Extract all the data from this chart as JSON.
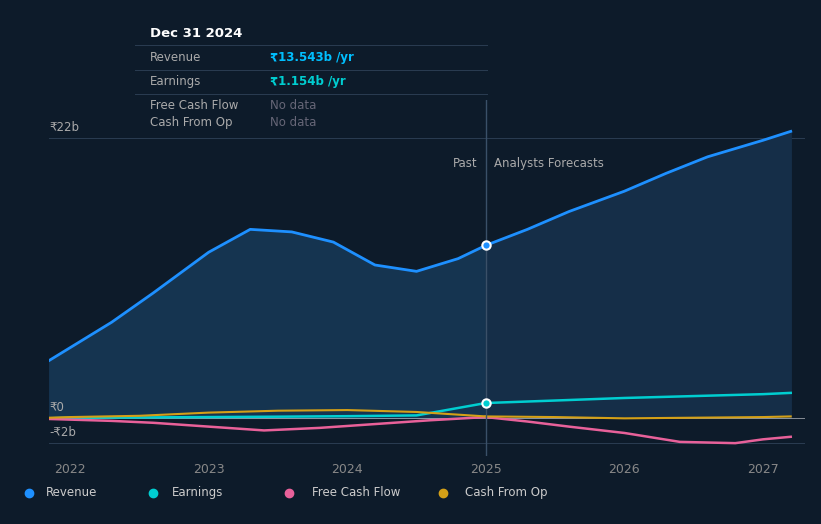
{
  "background_color": "#0d1b2a",
  "plot_bg_color": "#0d1b2a",
  "ylabel_top": "₹22b",
  "ylabel_zero": "₹0",
  "ylabel_neg": "-₹2b",
  "x_ticks": [
    2022,
    2023,
    2024,
    2025,
    2026,
    2027
  ],
  "divider_x": 2025,
  "past_label": "Past",
  "forecast_label": "Analysts Forecasts",
  "tooltip_title": "Dec 31 2024",
  "tooltip_revenue_label": "Revenue",
  "tooltip_revenue_val": "₹13.543b /yr",
  "tooltip_earnings_label": "Earnings",
  "tooltip_earnings_val": "₹1.154b /yr",
  "tooltip_fcf_label": "Free Cash Flow",
  "tooltip_fcf_val": "No data",
  "tooltip_cfop_label": "Cash From Op",
  "tooltip_cfop_val": "No data",
  "revenue_color": "#1e90ff",
  "earnings_color": "#00ced1",
  "fcf_color": "#e8619a",
  "cashfromop_color": "#d4a017",
  "revenue_fill_past": "#153450",
  "revenue_fill_future": "#152e48",
  "revenue_past_x": [
    2021.85,
    2022.0,
    2022.3,
    2022.6,
    2023.0,
    2023.3,
    2023.6,
    2023.9,
    2024.2,
    2024.5,
    2024.8,
    2025.0
  ],
  "revenue_past_y": [
    4.5,
    5.5,
    7.5,
    9.8,
    13.0,
    14.8,
    14.6,
    13.8,
    12.0,
    11.5,
    12.5,
    13.543
  ],
  "revenue_future_x": [
    2025.0,
    2025.3,
    2025.6,
    2026.0,
    2026.3,
    2026.6,
    2027.0,
    2027.2
  ],
  "revenue_future_y": [
    13.543,
    14.8,
    16.2,
    17.8,
    19.2,
    20.5,
    21.8,
    22.5
  ],
  "earnings_past_x": [
    2021.85,
    2022.0,
    2022.5,
    2023.0,
    2023.5,
    2024.0,
    2024.5,
    2025.0
  ],
  "earnings_past_y": [
    -0.05,
    0.0,
    0.02,
    0.05,
    0.08,
    0.12,
    0.18,
    1.154
  ],
  "earnings_future_x": [
    2025.0,
    2025.5,
    2026.0,
    2026.5,
    2027.0,
    2027.2
  ],
  "earnings_future_y": [
    1.154,
    1.35,
    1.55,
    1.7,
    1.85,
    1.95
  ],
  "fcf_past_x": [
    2021.85,
    2022.0,
    2022.3,
    2022.6,
    2023.0,
    2023.4,
    2023.8,
    2024.2,
    2024.6,
    2025.0
  ],
  "fcf_past_y": [
    -0.1,
    -0.15,
    -0.25,
    -0.4,
    -0.7,
    -1.0,
    -0.8,
    -0.5,
    -0.2,
    0.05
  ],
  "fcf_future_x": [
    2025.0,
    2025.3,
    2025.6,
    2026.0,
    2026.4,
    2026.8,
    2027.0,
    2027.2
  ],
  "fcf_future_y": [
    0.05,
    -0.3,
    -0.7,
    -1.2,
    -1.9,
    -2.0,
    -1.7,
    -1.5
  ],
  "cashfromop_past_x": [
    2021.85,
    2022.0,
    2022.5,
    2023.0,
    2023.5,
    2024.0,
    2024.5,
    2025.0
  ],
  "cashfromop_past_y": [
    0.0,
    0.05,
    0.15,
    0.4,
    0.55,
    0.6,
    0.45,
    0.1
  ],
  "cashfromop_future_x": [
    2025.0,
    2025.5,
    2026.0,
    2026.5,
    2027.0,
    2027.2
  ],
  "cashfromop_future_y": [
    0.1,
    0.05,
    -0.05,
    0.0,
    0.05,
    0.1
  ],
  "ylim": [
    -3.0,
    25.0
  ],
  "xlim": [
    2021.85,
    2027.3
  ],
  "ref_y_top": 22,
  "ref_y_zero": 0,
  "ref_y_neg": -2,
  "legend_labels": [
    "Revenue",
    "Earnings",
    "Free Cash Flow",
    "Cash From Op"
  ]
}
